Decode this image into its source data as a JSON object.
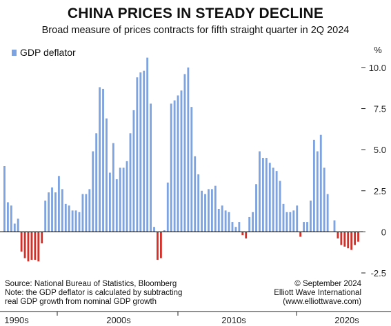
{
  "title": "CHINA PRICES IN STEADY DECLINE",
  "subtitle": "Broad measure of prices contracts for fifth straight quarter in 2Q 2024",
  "source_note": [
    "Source: National Bureau of Statistics, Bloomberg",
    "Note: the GDP deflator is calculated by subtracting",
    "real GDP growth from nominal GDP growth"
  ],
  "credit": [
    "© September 2024",
    "Elliott Wave International",
    "(www.elliottwave.com)"
  ],
  "colors": {
    "positive": "#7da3e0",
    "negative": "#d4302a",
    "zero_line": "#222222",
    "axis_text": "#222222"
  },
  "chart_data": {
    "type": "bar",
    "title": "CHINA PRICES IN STEADY DECLINE",
    "ylabel": "%",
    "ylim": [
      -2.5,
      10.5
    ],
    "yticks": [
      -2.5,
      0,
      2.5,
      5.0,
      7.5,
      10.0
    ],
    "ytick_labels": [
      "-2.5",
      "0",
      "2.5",
      "5.0",
      "7.5",
      "10.0"
    ],
    "grid": false,
    "legend_position": "top-left",
    "decade_labels": [
      "1990s",
      "2000s",
      "2010s",
      "2020s"
    ],
    "series": [
      {
        "name": "GDP deflator",
        "values": [
          4.0,
          1.8,
          1.6,
          0.5,
          0.8,
          -1.2,
          -1.6,
          -1.8,
          -1.7,
          -1.7,
          -1.8,
          -0.7,
          1.9,
          2.4,
          2.7,
          2.4,
          3.4,
          2.6,
          1.7,
          1.6,
          1.3,
          1.3,
          1.2,
          2.3,
          2.3,
          2.6,
          4.9,
          6.0,
          8.8,
          8.7,
          6.9,
          3.6,
          5.4,
          3.2,
          3.9,
          3.9,
          4.3,
          6.0,
          7.4,
          9.4,
          9.7,
          9.8,
          10.6,
          7.8,
          0.3,
          -1.7,
          -1.6,
          0.1,
          3.0,
          7.8,
          8.0,
          8.3,
          8.6,
          9.6,
          10.0,
          7.6,
          4.6,
          3.5,
          2.5,
          2.3,
          2.6,
          2.6,
          2.8,
          1.4,
          1.6,
          1.3,
          1.2,
          0.6,
          0.3,
          0.6,
          -0.2,
          -0.4,
          0.9,
          1.2,
          2.9,
          4.9,
          4.5,
          4.5,
          4.2,
          3.9,
          3.7,
          3.1,
          1.7,
          1.2,
          1.2,
          1.3,
          1.6,
          -0.3,
          0.6,
          0.6,
          1.9,
          5.6,
          4.9,
          5.9,
          3.9,
          2.3,
          0.0,
          0.7,
          -0.4,
          -0.8,
          -0.9,
          -1.0,
          -1.1,
          -0.8,
          -0.6
        ]
      }
    ]
  }
}
